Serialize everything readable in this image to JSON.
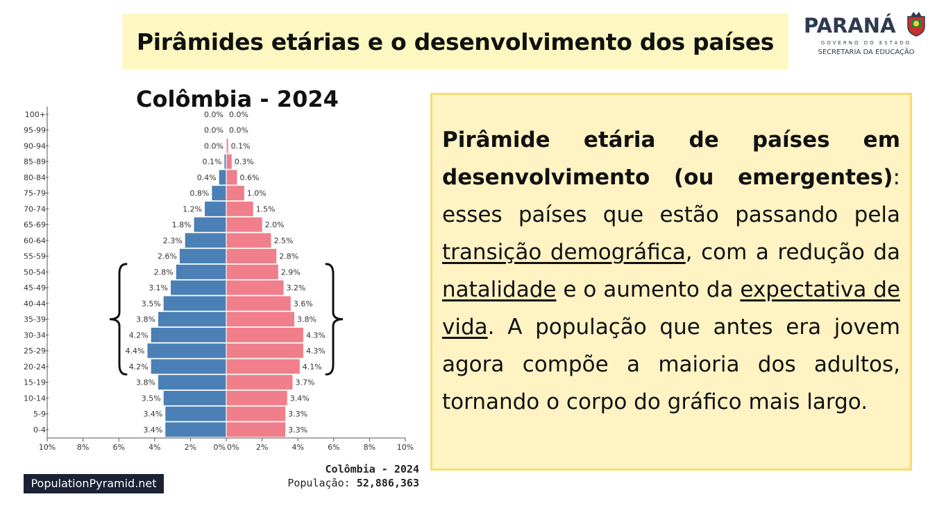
{
  "header": {
    "title": "Pirâmides etárias e o desenvolvimento dos países"
  },
  "logo": {
    "name": "PARANÁ",
    "subtitle": "GOVERNO DO ESTADO",
    "department": "SECRETARIA DA EDUCAÇÃO"
  },
  "colors": {
    "male": "#4a80b5",
    "female": "#f07f8b",
    "title_bg": "#fdf8c1",
    "box_bg": "#fff3c4",
    "box_border": "#f8dc73"
  },
  "chart_data": {
    "type": "bar",
    "orientation": "horizontal-population-pyramid",
    "title": "Colômbia - 2024",
    "categories": [
      "100+",
      "95-99",
      "90-94",
      "85-89",
      "80-84",
      "75-79",
      "70-74",
      "65-69",
      "60-64",
      "55-59",
      "50-54",
      "45-49",
      "40-44",
      "35-39",
      "30-34",
      "25-29",
      "20-24",
      "15-19",
      "10-14",
      "5-9",
      "0-4"
    ],
    "series": [
      {
        "side": "left",
        "color": "#4a80b5",
        "values": [
          0.0,
          0.0,
          0.0,
          0.1,
          0.4,
          0.8,
          1.2,
          1.8,
          2.3,
          2.6,
          2.8,
          3.1,
          3.5,
          3.8,
          4.2,
          4.4,
          4.2,
          3.8,
          3.5,
          3.4,
          3.4
        ],
        "labels": [
          "0.0%",
          "0.0%",
          "0.0%",
          "0.1%",
          "0.4%",
          "0.8%",
          "1.2%",
          "1.8%",
          "2.3%",
          "2.6%",
          "2.8%",
          "3.1%",
          "3.5%",
          "3.8%",
          "4.2%",
          "4.4%",
          "4.2%",
          "3.8%",
          "3.5%",
          "3.4%",
          "3.4%"
        ]
      },
      {
        "side": "right",
        "color": "#f07f8b",
        "values": [
          0.0,
          0.0,
          0.1,
          0.3,
          0.6,
          1.0,
          1.5,
          2.0,
          2.5,
          2.8,
          2.9,
          3.2,
          3.6,
          3.8,
          4.3,
          4.3,
          4.1,
          3.7,
          3.4,
          3.3,
          3.3
        ],
        "labels": [
          "0.0%",
          "0.0%",
          "0.1%",
          "0.3%",
          "0.6%",
          "1.0%",
          "1.5%",
          "2.0%",
          "2.5%",
          "2.8%",
          "2.9%",
          "3.2%",
          "3.6%",
          "3.8%",
          "4.3%",
          "4.3%",
          "4.1%",
          "3.7%",
          "3.4%",
          "3.3%",
          "3.3%"
        ]
      }
    ],
    "x_ticks": [
      "10%",
      "8%",
      "6%",
      "4%",
      "2%",
      "0%",
      "0%",
      "2%",
      "4%",
      "6%",
      "8%",
      "10%"
    ],
    "xlim": [
      0,
      10
    ],
    "bracket_range": [
      "20-24",
      "50-54"
    ],
    "source": "PopulationPyramid.net",
    "caption_name": "Colômbia - 2024",
    "caption_population_label": "População:",
    "caption_population_value": "52,886,363"
  },
  "explanation": {
    "heading": "Pirâmide etária de países em desenvolvimento (ou emergentes)",
    "t1": ": esses países que estão passando pela ",
    "u1": "transição demográfica",
    "t2": ", com a redução da ",
    "u2": "natalidade",
    "t3": " e o aumento da ",
    "u3": "expectativa de vida",
    "t4": ". A população que antes era jovem agora compõe a maioria dos adultos, tornando o corpo do gráfico mais largo."
  }
}
